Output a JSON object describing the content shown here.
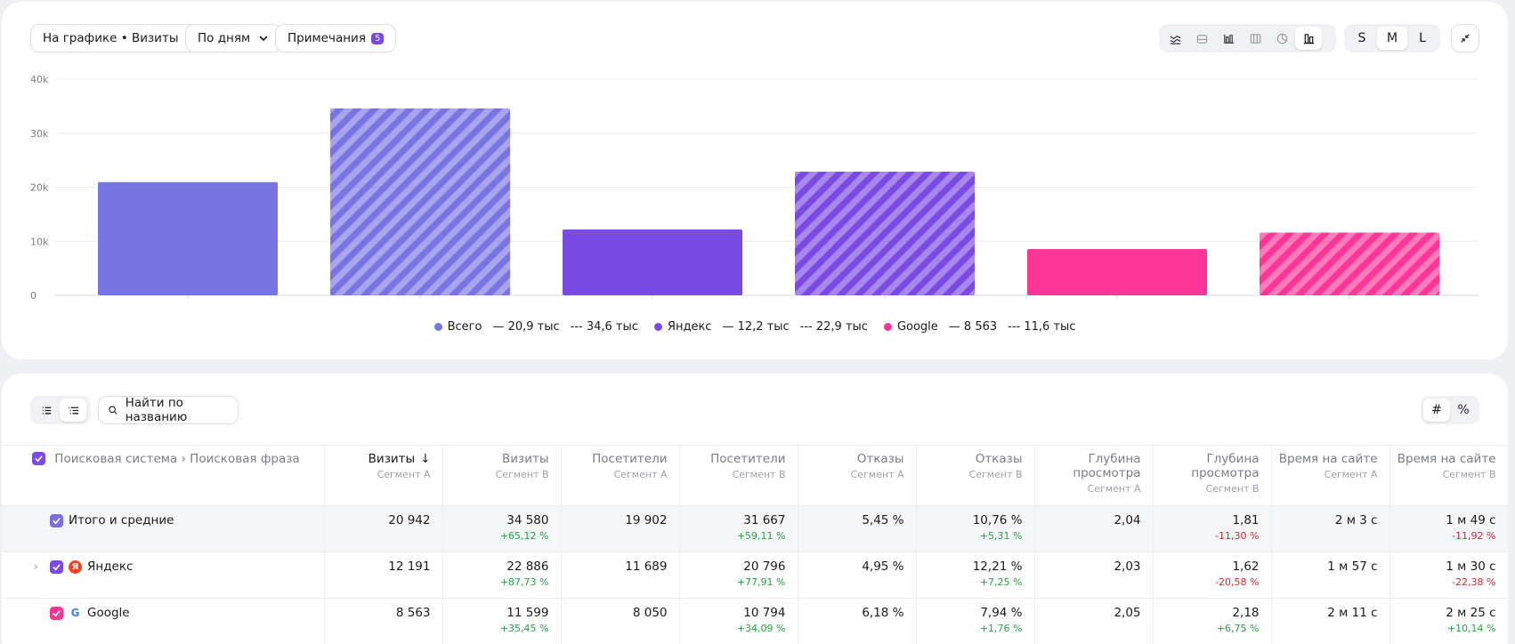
{
  "toolbar": {
    "chart_metric_label": "На графике • Визиты",
    "grouping_label": "По дням",
    "notes_label": "Примечания",
    "notes_count": "5",
    "chart_type_icons": [
      "line-chart-icon",
      "stacked-area-icon",
      "bar-chart-icon",
      "columns-icon",
      "pie-chart-icon",
      "grouped-bar-icon"
    ],
    "active_chart_type": 5,
    "sizes": [
      "S",
      "M",
      "L"
    ],
    "active_size": "M"
  },
  "chart_data": {
    "type": "bar",
    "ylim": [
      0,
      40000
    ],
    "yticks": [
      "0",
      "10k",
      "20k",
      "30k",
      "40k"
    ],
    "grid": true,
    "legend_position": "bottom",
    "series": [
      {
        "name": "Всего",
        "color": "#7974e4",
        "segment_a": 20942,
        "segment_b": 34580,
        "label_a": "20,9 тыс",
        "label_b": "34,6 тыс"
      },
      {
        "name": "Яндекс",
        "color": "#7b49e3",
        "segment_a": 12191,
        "segment_b": 22886,
        "label_a": "12,2 тыс",
        "label_b": "22,9 тыс"
      },
      {
        "name": "Google",
        "color": "#fc3596",
        "segment_a": 8563,
        "segment_b": 11599,
        "label_a": "8 563",
        "label_b": "11,6 тыс"
      }
    ]
  },
  "table_controls": {
    "search_placeholder": "Найти по названию",
    "view_modes": [
      "#",
      "%"
    ]
  },
  "table": {
    "first_header": "Поисковая система › Поисковая фраза",
    "columns": [
      {
        "title": "Визиты",
        "segment": "Сегмент А",
        "sorted": true
      },
      {
        "title": "Визиты",
        "segment": "Сегмент B"
      },
      {
        "title": "Посетители",
        "segment": "Сегмент А"
      },
      {
        "title": "Посетители",
        "segment": "Сегмент B"
      },
      {
        "title": "Отказы",
        "segment": "Сегмент А"
      },
      {
        "title": "Отказы",
        "segment": "Сегмент B"
      },
      {
        "title": "Глубина просмотра",
        "segment": "Сегмент А"
      },
      {
        "title": "Глубина просмотра",
        "segment": "Сегмент B"
      },
      {
        "title": "Время на сайте",
        "segment": "Сегмент А"
      },
      {
        "title": "Время на сайте",
        "segment": "Сегмент B"
      }
    ],
    "rows": [
      {
        "name": "Итого и средние",
        "type": "total",
        "checkbox_color": "#7b6fe0",
        "cells": [
          {
            "v": "20 942"
          },
          {
            "v": "34 580",
            "d": "+65,12 %",
            "pos": true
          },
          {
            "v": "19 902"
          },
          {
            "v": "31 667",
            "d": "+59,11 %",
            "pos": true
          },
          {
            "v": "5,45 %"
          },
          {
            "v": "10,76 %",
            "d": "+5,31 %",
            "pos": true
          },
          {
            "v": "2,04"
          },
          {
            "v": "1,81",
            "d": "-11,30 %",
            "pos": false
          },
          {
            "v": "2 м 3 с"
          },
          {
            "v": "1 м 49 с",
            "d": "-11,92 %",
            "pos": false
          }
        ]
      },
      {
        "name": "Яндекс",
        "type": "yandex",
        "checkbox_color": "#7b49e3",
        "expandable": true,
        "cells": [
          {
            "v": "12 191"
          },
          {
            "v": "22 886",
            "d": "+87,73 %",
            "pos": true
          },
          {
            "v": "11 689"
          },
          {
            "v": "20 796",
            "d": "+77,91 %",
            "pos": true
          },
          {
            "v": "4,95 %"
          },
          {
            "v": "12,21 %",
            "d": "+7,25 %",
            "pos": true
          },
          {
            "v": "2,03"
          },
          {
            "v": "1,62",
            "d": "-20,58 %",
            "pos": false
          },
          {
            "v": "1 м 57 с"
          },
          {
            "v": "1 м 30 с",
            "d": "-22,38 %",
            "pos": false
          }
        ]
      },
      {
        "name": "Google",
        "type": "google",
        "checkbox_color": "#fc3596",
        "cells": [
          {
            "v": "8 563"
          },
          {
            "v": "11 599",
            "d": "+35,45 %",
            "pos": true
          },
          {
            "v": "8 050"
          },
          {
            "v": "10 794",
            "d": "+34,09 %",
            "pos": true
          },
          {
            "v": "6,18 %"
          },
          {
            "v": "7,94 %",
            "d": "+1,76 %",
            "pos": true
          },
          {
            "v": "2,05"
          },
          {
            "v": "2,18",
            "d": "+6,75 %",
            "pos": true
          },
          {
            "v": "2 м 11 с"
          },
          {
            "v": "2 м 25 с",
            "d": "+10,14 %",
            "pos": true
          }
        ]
      }
    ]
  }
}
